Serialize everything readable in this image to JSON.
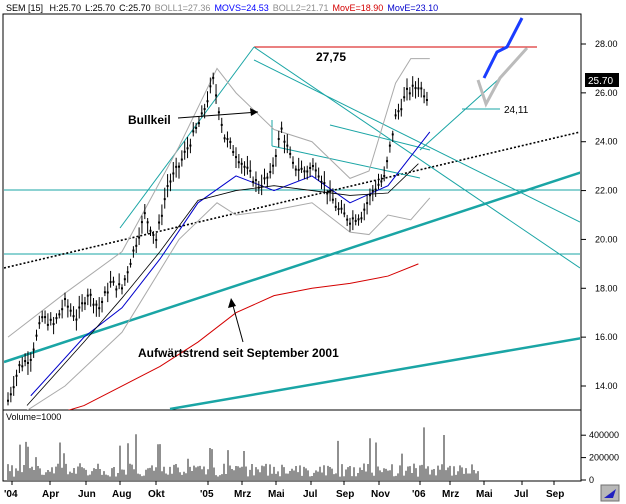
{
  "header": {
    "symbol": "SEM [15]",
    "parts": [
      {
        "label": "H:",
        "value": "25.70",
        "color": "#000000"
      },
      {
        "label": "L:",
        "value": "25.70",
        "color": "#000000"
      },
      {
        "label": "C:",
        "value": "25.70",
        "color": "#000000"
      },
      {
        "label": "BOLL1=",
        "value": "27.36",
        "color": "#8c8c8c"
      },
      {
        "label": "MOVS=",
        "value": "24.53",
        "color": "#0000ff"
      },
      {
        "label": "BOLL2=",
        "value": "21.71",
        "color": "#8c8c8c"
      },
      {
        "label": "MovE=",
        "value": "18.90",
        "color": "#d40000"
      },
      {
        "label": "MovE=",
        "value": "23.10",
        "color": "#0000cc"
      }
    ]
  },
  "chart_data": {
    "type": "line",
    "title": "",
    "xlabel": "",
    "ylabel": "",
    "ylim": [
      12.0,
      29.0
    ],
    "x_tick_labels": [
      "'04",
      "Apr",
      "Jun",
      "Aug",
      "Okt",
      "'05",
      "Mrz",
      "Mai",
      "Jul",
      "Sep",
      "Nov",
      "'06",
      "Mrz",
      "Mai",
      "Jul",
      "Sep"
    ],
    "y_tick_labels": [
      "14.00",
      "16.00",
      "18.00",
      "20.00",
      "22.00",
      "24.00",
      "26.00",
      "28.00"
    ],
    "y_tick_values": [
      14,
      16,
      18,
      20,
      22,
      24,
      26,
      28
    ],
    "last_price": {
      "value": 25.7,
      "label": "25.70"
    },
    "price_series": {
      "name": "SEM",
      "t": [
        0,
        3,
        6,
        9,
        12,
        15,
        18,
        21,
        24,
        27,
        30,
        33,
        36,
        39,
        42,
        45,
        48,
        51,
        54,
        57,
        60,
        63,
        66,
        69,
        72,
        75,
        78,
        81,
        84,
        87,
        90,
        93,
        96,
        99,
        102,
        105,
        108,
        111
      ],
      "close": [
        13.4,
        14.8,
        15.2,
        16.8,
        16.5,
        17.4,
        16.8,
        17.8,
        17.2,
        18.2,
        18.0,
        19.5,
        21.0,
        20.0,
        22.2,
        23.0,
        24.0,
        25.0,
        26.5,
        24.2,
        23.5,
        22.8,
        22.2,
        22.6,
        24.5,
        23.0,
        22.8,
        23.0,
        22.0,
        21.2,
        20.8,
        21.0,
        22.0,
        22.5,
        25.0,
        26.0,
        26.3,
        25.7
      ]
    },
    "indicators": [
      {
        "name": "MOVS",
        "value": 24.53,
        "t": [
          6,
          20,
          30,
          40,
          50,
          60,
          70,
          80,
          90,
          100,
          111
        ],
        "y": [
          13.6,
          16.0,
          17.2,
          19.2,
          21.5,
          22.6,
          22.0,
          22.6,
          21.5,
          22.2,
          24.4
        ]
      },
      {
        "name": "BOLL1",
        "value": 27.36,
        "t": [
          0,
          15,
          30,
          45,
          55,
          60,
          70,
          80,
          90,
          95,
          102,
          106,
          111
        ],
        "y": [
          16.0,
          17.8,
          19.5,
          23.8,
          27.0,
          26.0,
          24.5,
          24.0,
          22.5,
          22.8,
          26.4,
          27.4,
          27.4
        ]
      },
      {
        "name": "BOLL2",
        "value": 21.71,
        "t": [
          0,
          15,
          30,
          45,
          55,
          60,
          70,
          80,
          90,
          95,
          100,
          106,
          111
        ],
        "y": [
          12.5,
          14.0,
          16.2,
          20.0,
          21.5,
          21.0,
          21.2,
          21.5,
          20.3,
          20.2,
          21.0,
          20.8,
          21.7
        ]
      },
      {
        "name": "MovE 1",
        "value": 18.9,
        "t": [
          1,
          20,
          40,
          50,
          60,
          70,
          80,
          90,
          100,
          108
        ],
        "y": [
          12.3,
          13.2,
          14.8,
          15.8,
          17.0,
          17.7,
          18.0,
          18.2,
          18.5,
          19.0
        ]
      },
      {
        "name": "MovE 2",
        "value": 23.1,
        "t": [
          5,
          20,
          30,
          40,
          50,
          60,
          70,
          80,
          90,
          100,
          108
        ],
        "y": [
          13.2,
          15.8,
          17.6,
          19.5,
          21.6,
          22.0,
          22.2,
          22.0,
          21.8,
          21.9,
          23.1
        ]
      }
    ],
    "annotations": [
      {
        "label": "27,75",
        "value": 27.75
      },
      {
        "label": "24,11",
        "value": 24.11
      },
      {
        "label": "Bullkeil"
      },
      {
        "label": "Aufwärtstrend seit September 2001"
      }
    ],
    "volume_panel": {
      "label": "Volume=1000",
      "y_tick_labels": [
        "400000",
        "200000",
        "0"
      ],
      "ylim": [
        0,
        500000
      ]
    }
  }
}
